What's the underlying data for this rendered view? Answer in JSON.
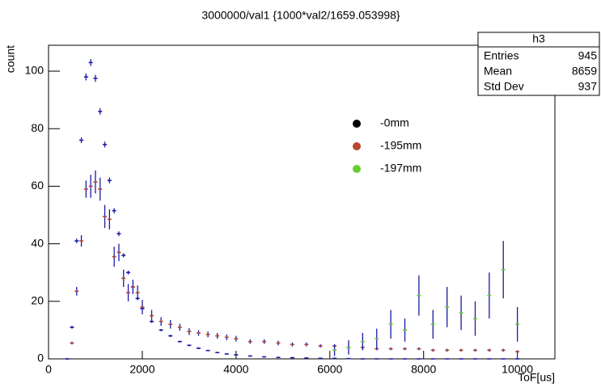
{
  "chart_data": {
    "type": "errorbar",
    "title": "3000000/val1 {1000*val2/1659.053998}",
    "x_label": "ToF[us]",
    "y_label": "count",
    "x": [
      400,
      500,
      600,
      700,
      800,
      900,
      1000,
      1100,
      1200,
      1300,
      1400,
      1500,
      1600,
      1700,
      1800,
      1900,
      2000,
      2200,
      2400,
      2600,
      2800,
      3000,
      3200,
      3400,
      3600,
      3800,
      4000,
      4300,
      4600,
      4900,
      5200,
      5500,
      5800,
      6100,
      6400,
      6700,
      7000,
      7300,
      7600,
      7900,
      8200,
      8500,
      8800,
      9100,
      9400,
      9700,
      10000
    ],
    "error_color": "#1a1aa8",
    "series": [
      {
        "name": "-0mm",
        "color": "#000000",
        "values": [
          0,
          11,
          41,
          76,
          98,
          103,
          97.5,
          86,
          74.5,
          62,
          51.5,
          43.5,
          36,
          30,
          25,
          21,
          17.5,
          13,
          10,
          8,
          6,
          4.7,
          3.7,
          2.9,
          2.2,
          1.7,
          1.4,
          1,
          0.7,
          0.5,
          0.4,
          0.3,
          0.2,
          0.2,
          0.1,
          0,
          0,
          0,
          0,
          0,
          0,
          0,
          0,
          0,
          0,
          0,
          0
        ],
        "errors": [
          0.3,
          0.5,
          0.8,
          1,
          1.2,
          1.2,
          1.2,
          1.1,
          1,
          1,
          0.9,
          0.8,
          0.7,
          0.7,
          0.6,
          0.6,
          0.5,
          0.5,
          0.4,
          0.4,
          0.3,
          0.3,
          0.3,
          0.2,
          0.2,
          0.2,
          0.2,
          0.2,
          0.1,
          0.1,
          0.1,
          0.1,
          0.1,
          0.1,
          0.1,
          0,
          0,
          0,
          0,
          0,
          0,
          0,
          0,
          0,
          0,
          0,
          0
        ]
      },
      {
        "name": "-195mm",
        "color": "#b8452e",
        "values": [
          null,
          5.5,
          23.5,
          41,
          59,
          60,
          61.5,
          59,
          49.5,
          48.5,
          35.5,
          37,
          28,
          23,
          25,
          23,
          18,
          15,
          13,
          12,
          11,
          9.5,
          9,
          8.5,
          8,
          7.5,
          7,
          6,
          6,
          5.5,
          5,
          5,
          4.5,
          4.5,
          4,
          4,
          3.5,
          3.5,
          3.5,
          3.5,
          3,
          3,
          3,
          3,
          3,
          3,
          2.5
        ],
        "errors": [
          null,
          0.5,
          1.5,
          2,
          3,
          4,
          4,
          4,
          4,
          3.5,
          3.5,
          3,
          3,
          3,
          2.5,
          2.5,
          2.5,
          2,
          1.5,
          1.5,
          1.2,
          1.2,
          1,
          1,
          1,
          1,
          1,
          0.8,
          0.8,
          0.8,
          0.7,
          0.7,
          0.6,
          0.6,
          0.6,
          0.6,
          0.5,
          0.5,
          0.5,
          0.5,
          0.5,
          0.5,
          0.5,
          0.5,
          0.5,
          0.5,
          0.5
        ]
      },
      {
        "name": "-197mm",
        "color": "#66cc33",
        "values": [
          null,
          null,
          null,
          null,
          null,
          null,
          null,
          null,
          null,
          null,
          null,
          null,
          null,
          null,
          null,
          null,
          null,
          null,
          null,
          null,
          null,
          null,
          null,
          null,
          null,
          null,
          null,
          null,
          null,
          null,
          null,
          null,
          null,
          3,
          4,
          6,
          7,
          12,
          10,
          22,
          12,
          18,
          16,
          14,
          22,
          31,
          12
        ],
        "errors": [
          null,
          null,
          null,
          null,
          null,
          null,
          null,
          null,
          null,
          null,
          null,
          null,
          null,
          null,
          null,
          null,
          null,
          null,
          null,
          null,
          null,
          null,
          null,
          null,
          null,
          null,
          null,
          null,
          null,
          null,
          null,
          null,
          null,
          2,
          2.5,
          3,
          3.5,
          5,
          4,
          7,
          5,
          7,
          6,
          6,
          8,
          10,
          6
        ]
      }
    ],
    "xlim": [
      0,
      10800
    ],
    "ylim": [
      0,
      109
    ],
    "xticks": [
      0,
      2000,
      4000,
      6000,
      8000,
      10000
    ],
    "yticks": [
      0,
      20,
      40,
      60,
      80,
      100
    ],
    "stats": {
      "title": "h3",
      "rows": [
        [
          "Entries",
          "945"
        ],
        [
          "Mean",
          "8659"
        ],
        [
          "Std Dev",
          "937"
        ]
      ]
    }
  }
}
